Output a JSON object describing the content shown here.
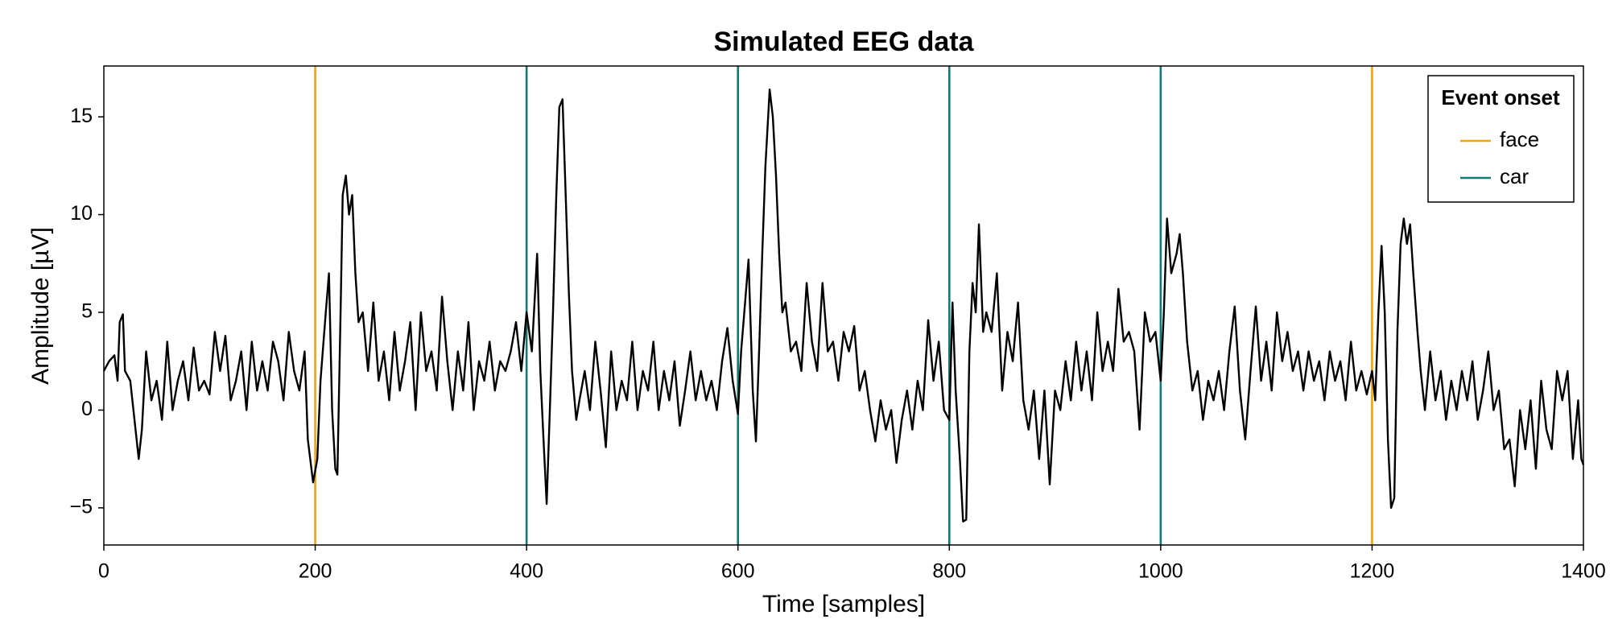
{
  "chart_data": {
    "type": "line",
    "title": "Simulated EEG data",
    "x_label": "Time [samples]",
    "y_label": "Amplitude [µV]",
    "xlim": [
      0,
      1400
    ],
    "ylim": [
      -6.9,
      17.6
    ],
    "xticks": [
      0,
      200,
      400,
      600,
      800,
      1000,
      1200,
      1400
    ],
    "yticks": [
      {
        "value": -5,
        "label": "−5"
      },
      0,
      5,
      10,
      15
    ],
    "color": "#000000",
    "x": [
      0,
      5,
      10,
      13,
      15,
      18,
      20,
      25,
      30,
      33,
      36,
      40,
      45,
      50,
      55,
      60,
      65,
      70,
      75,
      80,
      85,
      90,
      95,
      100,
      105,
      110,
      115,
      120,
      125,
      130,
      135,
      140,
      145,
      150,
      155,
      160,
      165,
      170,
      175,
      180,
      185,
      190,
      193,
      198,
      202,
      205,
      210,
      213,
      216,
      219,
      221,
      224,
      226,
      229,
      232,
      235,
      238,
      241,
      245,
      250,
      255,
      260,
      265,
      270,
      275,
      280,
      285,
      290,
      295,
      300,
      305,
      310,
      315,
      320,
      325,
      330,
      335,
      340,
      345,
      350,
      355,
      360,
      365,
      370,
      375,
      380,
      385,
      390,
      395,
      400,
      405,
      410,
      413,
      416,
      419,
      422,
      425,
      428,
      431,
      434,
      437,
      440,
      443,
      447,
      450,
      455,
      460,
      465,
      470,
      475,
      480,
      485,
      490,
      495,
      500,
      505,
      510,
      515,
      520,
      525,
      530,
      535,
      540,
      545,
      550,
      555,
      560,
      565,
      570,
      575,
      580,
      585,
      590,
      595,
      600,
      603,
      606,
      610,
      614,
      617,
      620,
      623,
      626,
      630,
      633,
      636,
      639,
      642,
      645,
      650,
      655,
      660,
      665,
      670,
      675,
      680,
      685,
      690,
      695,
      700,
      705,
      710,
      715,
      720,
      725,
      730,
      735,
      740,
      745,
      750,
      755,
      760,
      765,
      770,
      775,
      780,
      785,
      790,
      795,
      800,
      803,
      806,
      810,
      813,
      816,
      819,
      822,
      825,
      828,
      832,
      835,
      840,
      845,
      850,
      855,
      860,
      865,
      870,
      875,
      880,
      885,
      890,
      895,
      900,
      905,
      910,
      915,
      920,
      925,
      930,
      935,
      940,
      945,
      950,
      955,
      960,
      965,
      970,
      975,
      980,
      985,
      990,
      995,
      1000,
      1003,
      1006,
      1010,
      1015,
      1018,
      1021,
      1025,
      1030,
      1035,
      1040,
      1045,
      1050,
      1055,
      1060,
      1065,
      1070,
      1075,
      1080,
      1085,
      1090,
      1095,
      1100,
      1105,
      1110,
      1115,
      1120,
      1125,
      1130,
      1135,
      1140,
      1145,
      1150,
      1155,
      1160,
      1165,
      1170,
      1175,
      1180,
      1185,
      1190,
      1195,
      1200,
      1203,
      1206,
      1209,
      1212,
      1215,
      1218,
      1221,
      1224,
      1227,
      1230,
      1233,
      1236,
      1239,
      1243,
      1246,
      1250,
      1255,
      1260,
      1265,
      1270,
      1275,
      1280,
      1285,
      1290,
      1295,
      1300,
      1305,
      1310,
      1315,
      1320,
      1325,
      1330,
      1335,
      1340,
      1345,
      1350,
      1355,
      1360,
      1365,
      1370,
      1375,
      1380,
      1385,
      1390,
      1395,
      1398,
      1400
    ],
    "values": [
      2,
      2.5,
      2.8,
      1.5,
      4.5,
      4.9,
      2,
      1.5,
      -1,
      -2.5,
      -1,
      3,
      0.5,
      1.5,
      -0.5,
      3.5,
      0,
      1.5,
      2.5,
      0.5,
      3.2,
      1,
      1.5,
      0.8,
      4,
      2,
      3.8,
      0.5,
      1.5,
      3,
      0,
      3.5,
      1,
      2.5,
      1,
      3.5,
      2.5,
      0.5,
      4,
      2,
      1,
      3,
      -1.5,
      -3.7,
      -2.5,
      1.5,
      5,
      7,
      0,
      -3,
      -3.3,
      5,
      11,
      12,
      10,
      11,
      7,
      4.5,
      5,
      2,
      5.5,
      1.5,
      3,
      0.5,
      4,
      1,
      2.5,
      4.5,
      0,
      5,
      2,
      3,
      1,
      5.8,
      2.5,
      0,
      3,
      1,
      4.5,
      0,
      2.5,
      1.5,
      3.5,
      1,
      2.5,
      2,
      3,
      4.5,
      2,
      5,
      3,
      8,
      2,
      -1.5,
      -4.8,
      0,
      5,
      10.8,
      15.5,
      15.9,
      11,
      6,
      2,
      -0.5,
      0.5,
      2,
      0,
      3.5,
      1,
      -1.9,
      3,
      0,
      1.5,
      0.5,
      3.5,
      0,
      2,
      1,
      3.5,
      0,
      2,
      0.5,
      2.5,
      -0.8,
      1,
      3,
      0.5,
      2,
      0.5,
      1.5,
      0,
      2.5,
      4.2,
      1.5,
      -0.2,
      3,
      5,
      7.7,
      1,
      -1.6,
      3,
      8,
      12.5,
      16.4,
      15,
      12,
      8,
      5,
      5.5,
      3,
      3.5,
      2,
      6.5,
      3.5,
      2,
      6.5,
      3,
      3.5,
      1.5,
      4,
      3,
      4.3,
      1,
      2,
      0,
      -1.6,
      0.5,
      -1,
      0,
      -2.7,
      -0.5,
      1,
      -1,
      1.5,
      0,
      4.6,
      1.5,
      3.5,
      0,
      -0.5,
      5.5,
      1,
      -2.5,
      -5.7,
      -5.6,
      3,
      6.5,
      5,
      9.5,
      4,
      5,
      4,
      7,
      1,
      4,
      2.5,
      5.5,
      0.5,
      -1,
      1,
      -2.5,
      1,
      -3.8,
      1,
      0,
      2.5,
      0.5,
      3.5,
      1,
      3,
      0.5,
      5,
      2,
      3.5,
      2,
      6.2,
      3.5,
      4,
      3,
      -1,
      5,
      3.5,
      4,
      1.5,
      5,
      9.8,
      7,
      8,
      9,
      7,
      3.5,
      1,
      2,
      -0.5,
      1.5,
      0.5,
      2,
      0,
      3,
      5.3,
      1,
      -1.5,
      2,
      5.3,
      1.5,
      3.5,
      1,
      5,
      2.5,
      4,
      2,
      3,
      1,
      3,
      1.5,
      2.5,
      0.5,
      3,
      1.5,
      2.5,
      0.5,
      3.5,
      1,
      2,
      0.8,
      2,
      0.5,
      5,
      8.4,
      5,
      -1.5,
      -5,
      -4.5,
      4,
      8.5,
      9.8,
      8.5,
      9.5,
      7,
      4,
      2,
      0,
      3,
      0.5,
      2,
      -0.5,
      1.5,
      0,
      2,
      0.5,
      2.5,
      -0.5,
      1,
      3,
      0,
      1,
      -2,
      -1.5,
      -3.9,
      0,
      -2,
      0.5,
      -3,
      1.5,
      -1,
      -2,
      2,
      0.5,
      2,
      -2.5,
      0.5,
      -2.5,
      -2.8
    ],
    "legend_title": "Event onset",
    "events": [
      {
        "name": "face",
        "color": "#f0a30a",
        "x": [
          200,
          1200
        ]
      },
      {
        "name": "car",
        "color": "#117a72",
        "x": [
          400,
          600,
          800,
          1000
        ]
      }
    ]
  }
}
